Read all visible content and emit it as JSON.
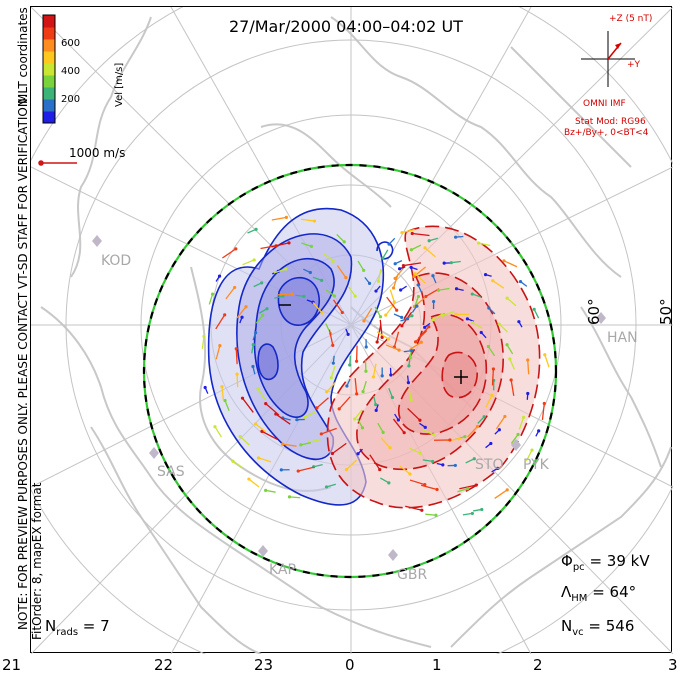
{
  "title": "27/Mar/2000 04:00–04:02 UT",
  "coordinates_label": "MLT coordinates",
  "note_line1": "NOTE: FOR PREVIEW PURPOSES ONLY. PLEASE CONTACT VT-SD STAFF FOR VERIFICATION.",
  "note_line2": "FitOrder: 8, mapEX format",
  "colorbar": {
    "label": "Vel [m/s]",
    "ticks": [
      "600",
      "400",
      "200"
    ],
    "colors": [
      "#1e1ee6",
      "#2870c8",
      "#3cb478",
      "#7ad23c",
      "#c8e632",
      "#ffc81e",
      "#ff8c1e",
      "#f03c14",
      "#d21414"
    ]
  },
  "reference_vector": "1000 m/s",
  "imf": {
    "axis_z": "+Z (5 nT)",
    "axis_y": "+Y",
    "source": "OMNI IMF",
    "model": "Stat Mod: RG96",
    "condition": "Bz+/By+, 0<BT<4",
    "color": "#d40000"
  },
  "latitude_labels": [
    "60°",
    "50°"
  ],
  "radar_sites": [
    "KOD",
    "HAN",
    "SAS",
    "STO",
    "PYK",
    "KAP",
    "GBR"
  ],
  "stats": {
    "phi_pc": "39 kV",
    "lambda_hm": "64°",
    "n_vc": "546",
    "n_rads": "7"
  },
  "mlt_labels": [
    "21",
    "22",
    "23",
    "0",
    "1",
    "2",
    "3"
  ],
  "contours": {
    "negative_color": "#1428c8",
    "positive_color": "#c81414",
    "heppner_maynard_color": "#32c832"
  }
}
